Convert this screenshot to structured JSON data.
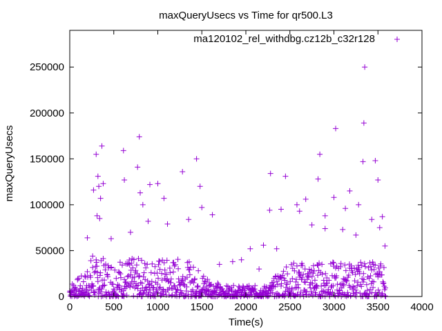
{
  "chart_data": {
    "type": "scatter",
    "title": "maxQueryUsecs vs Time for qr500.L3",
    "xlabel": "Time(s)",
    "ylabel": "maxQueryUsecs",
    "xlim": [
      0,
      4000
    ],
    "ylim": [
      0,
      290000
    ],
    "xticks": [
      0,
      500,
      1000,
      1500,
      2000,
      2500,
      3000,
      3500,
      4000
    ],
    "xtick_labels": [
      "0",
      "500",
      "1000",
      "1500",
      "2000",
      "2500",
      "3000",
      "3500",
      "4000"
    ],
    "yticks": [
      0,
      50000,
      100000,
      150000,
      200000,
      250000
    ],
    "ytick_labels": [
      "0",
      "50000",
      "100000",
      "150000",
      "200000",
      "250000"
    ],
    "grid": false,
    "legend_position": "top-right",
    "series": [
      {
        "name": "ma120102_rel_withdbg.cz12b_c32r128",
        "color": "#9400d3",
        "marker": "plus",
        "points": [
          [
            320,
            131000
          ],
          [
            330,
            120000
          ],
          [
            350,
            107000
          ],
          [
            365,
            164000
          ],
          [
            380,
            123000
          ],
          [
            300,
            155000
          ],
          [
            270,
            116000
          ],
          [
            310,
            88000
          ],
          [
            340,
            85000
          ],
          [
            610,
            159000
          ],
          [
            620,
            127000
          ],
          [
            790,
            174000
          ],
          [
            770,
            141000
          ],
          [
            800,
            113000
          ],
          [
            830,
            100000
          ],
          [
            910,
            122000
          ],
          [
            1000,
            123000
          ],
          [
            1070,
            107000
          ],
          [
            1280,
            136000
          ],
          [
            1440,
            150000
          ],
          [
            1480,
            120000
          ],
          [
            1500,
            97000
          ],
          [
            1350,
            84000
          ],
          [
            1620,
            89000
          ],
          [
            1110,
            79000
          ],
          [
            890,
            82000
          ],
          [
            690,
            70000
          ],
          [
            470,
            63000
          ],
          [
            200,
            64000
          ],
          [
            260,
            44000
          ],
          [
            2280,
            134000
          ],
          [
            2450,
            131000
          ],
          [
            2270,
            94000
          ],
          [
            2400,
            95000
          ],
          [
            2610,
            93000
          ],
          [
            2580,
            100000
          ],
          [
            2680,
            106000
          ],
          [
            2840,
            155000
          ],
          [
            2820,
            128000
          ],
          [
            3020,
            183000
          ],
          [
            3000,
            108000
          ],
          [
            3130,
            96000
          ],
          [
            3180,
            115000
          ],
          [
            3280,
            100000
          ],
          [
            3330,
            147000
          ],
          [
            3340,
            189000
          ],
          [
            3350,
            250000
          ],
          [
            3470,
            148000
          ],
          [
            3500,
            127000
          ],
          [
            3430,
            84000
          ],
          [
            3550,
            87000
          ],
          [
            3520,
            75000
          ],
          [
            3580,
            55000
          ],
          [
            3250,
            67000
          ],
          [
            3100,
            73000
          ],
          [
            2900,
            74000
          ],
          [
            2750,
            78000
          ],
          [
            2900,
            88000
          ],
          [
            2350,
            52000
          ],
          [
            2200,
            56000
          ],
          [
            2050,
            52000
          ],
          [
            1950,
            40000
          ],
          [
            1850,
            38000
          ],
          [
            1700,
            35000
          ],
          [
            2150,
            30000
          ]
        ]
      }
    ]
  }
}
